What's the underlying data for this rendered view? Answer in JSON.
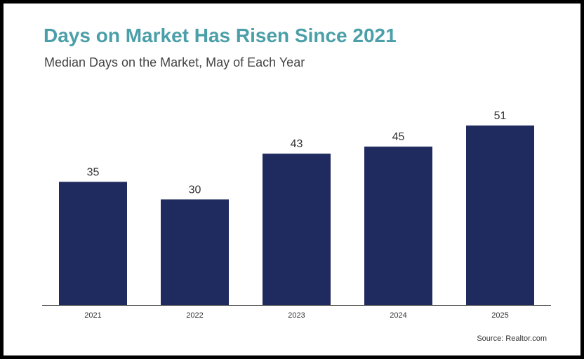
{
  "header": {
    "title": "Days on Market Has Risen Since 2021",
    "subtitle": "Median Days on the Market, May of Each Year"
  },
  "footer": {
    "source": "Source: Realtor.com"
  },
  "colors": {
    "title": "#4a9fa8",
    "bar": "#1f2a5e",
    "axis": "#444444"
  },
  "chart_data": {
    "type": "bar",
    "title": "Days on Market Has Risen Since 2021",
    "subtitle": "Median Days on the Market, May of Each Year",
    "xlabel": "",
    "ylabel": "",
    "categories": [
      "2021",
      "2022",
      "2023",
      "2024",
      "2025"
    ],
    "values": [
      35,
      30,
      43,
      45,
      51
    ],
    "data_labels": [
      "35",
      "30",
      "43",
      "45",
      "51"
    ],
    "ylim": [
      0,
      51
    ],
    "grid": false,
    "legend": "none"
  }
}
